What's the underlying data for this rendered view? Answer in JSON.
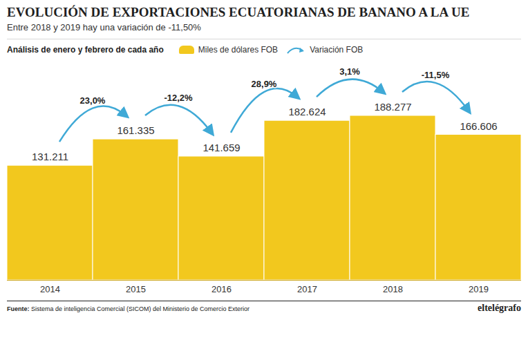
{
  "chart_data": {
    "type": "bar",
    "title": "EVOLUCIÓN DE EXPORTACIONES ECUATORIANAS DE BANANO A LA UE",
    "subtitle": "Entre 2018 y 2019 hay una variación de -11,50%",
    "note": "Análisis de enero y febrero de cada año",
    "categories": [
      "2014",
      "2015",
      "2016",
      "2017",
      "2018",
      "2019"
    ],
    "series": [
      {
        "name": "Miles de dólares FOB",
        "color": "#f2c81e",
        "values": [
          131211,
          161335,
          141659,
          182624,
          188277,
          166606
        ],
        "value_labels": [
          "131.211",
          "161.335",
          "141.659",
          "182.624",
          "188.277",
          "166.606"
        ]
      }
    ],
    "changes": {
      "name": "Variación FOB",
      "color": "#3fa9d6",
      "values": [
        23.0,
        -12.2,
        28.9,
        3.1,
        -11.5
      ],
      "value_labels": [
        "23,0%",
        "-12,2%",
        "28,9%",
        "3,1%",
        "-11,5%"
      ]
    },
    "ylim": [
      0,
      250000
    ],
    "data_labels": true,
    "tick_labels": "x",
    "source_label": "Fuente:",
    "source": "Sistema de inteligencia Comercial (SICOM) del Ministerio de Comercio Exterior",
    "brand": "eltelégrafo"
  }
}
